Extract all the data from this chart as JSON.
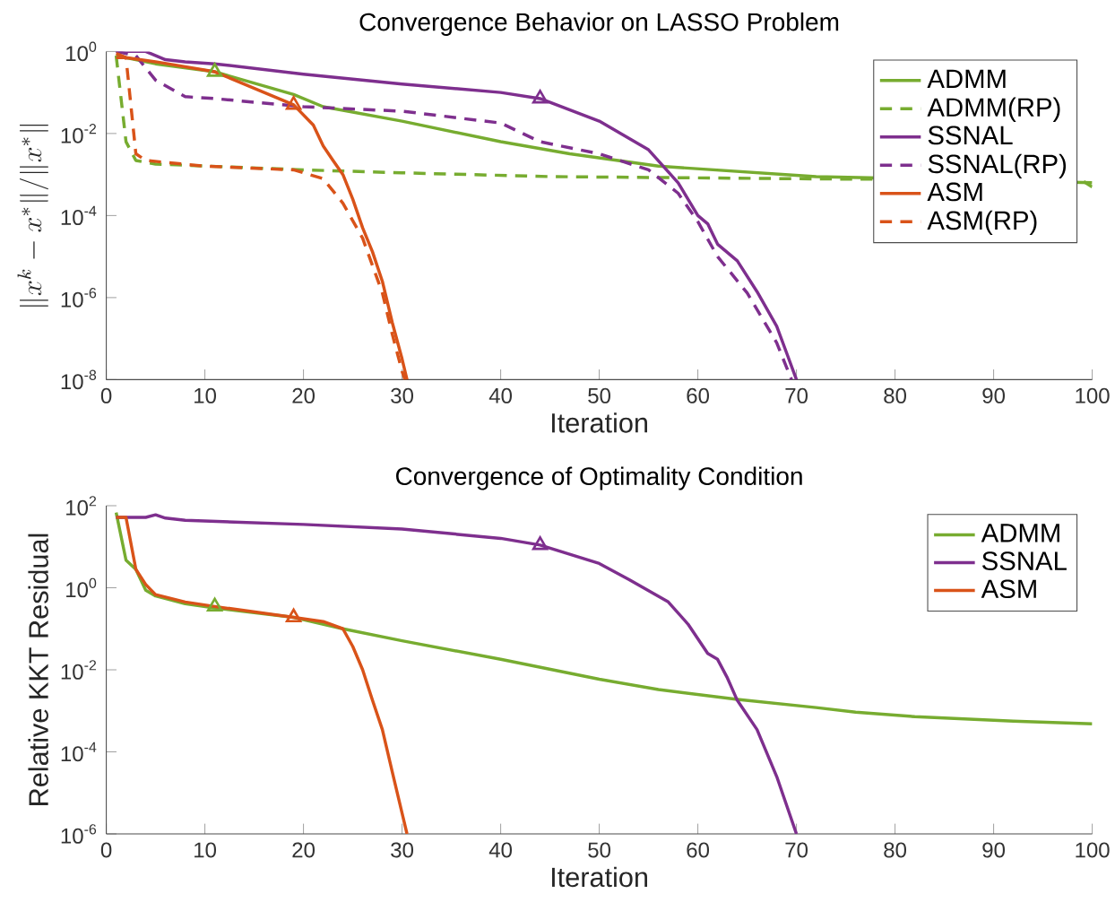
{
  "chart_data": [
    {
      "type": "line",
      "title": "Convergence Behavior on LASSO Problem",
      "xlabel": "Iteration",
      "ylabel": "\\|x^k-x^*\\|/\\|x^*\\|",
      "log": true,
      "legend": "top right",
      "xlim": [
        0,
        100
      ],
      "xticks": [
        0,
        10,
        20,
        30,
        40,
        50,
        60,
        70,
        80,
        90,
        100
      ],
      "ylim": [
        1e-08,
        1
      ],
      "yticks": [
        {
          "value": 1e-08,
          "label": "10$^{-8}$"
        },
        {
          "value": 1e-06,
          "label": "10$^{-6}$"
        },
        {
          "value": 0.0001,
          "label": "10$^{-4}$"
        },
        {
          "value": 0.01,
          "label": "10$^{-2}$"
        },
        {
          "value": 1,
          "label": "10$^{0}$"
        }
      ],
      "series": [
        {
          "name": "ADMM",
          "color": "#77ac30",
          "line_style": "solid",
          "x": [
            1,
            5,
            11,
            19,
            22,
            30,
            40,
            47,
            56,
            72,
            90,
            100
          ],
          "values": [
            0.79,
            0.5,
            0.32,
            0.089,
            0.045,
            0.02,
            0.0063,
            0.0032,
            0.0016,
            0.00089,
            null,
            0.00063
          ]
        },
        {
          "name": "ADMM(RP)",
          "color": "#77ac30",
          "line_style": "dashed",
          "x": [
            1,
            2,
            3,
            5,
            20,
            30,
            45,
            70,
            99,
            100
          ],
          "values": [
            0.79,
            0.0063,
            0.0022,
            0.0018,
            0.0013,
            0.0011,
            0.00089,
            0.00079,
            0.00071,
            0.0005
          ]
        },
        {
          "name": "SSNAL",
          "color": "#7e2f8e",
          "line_style": "solid",
          "x": [
            1,
            4,
            6,
            8,
            11,
            20,
            30,
            40,
            44,
            50,
            55,
            58,
            60,
            61,
            62,
            64,
            66,
            68,
            69,
            70
          ],
          "values": [
            1,
            1,
            0.63,
            0.56,
            0.5,
            0.28,
            0.16,
            0.1,
            0.071,
            0.02,
            0.004,
            0.00063,
            0.0001,
            6.3e-05,
            2e-05,
            7.9e-06,
            1.4e-06,
            2e-07,
            4.5e-08,
            1e-08
          ]
        },
        {
          "name": "SSNAL(RP)",
          "color": "#7e2f8e",
          "line_style": "dashed",
          "x": [
            1,
            3,
            5,
            8,
            11,
            20,
            30,
            40,
            44,
            50,
            55,
            58,
            60,
            62,
            65,
            68,
            69.5
          ],
          "values": [
            1,
            0.79,
            0.2,
            0.079,
            0.071,
            0.045,
            0.035,
            0.018,
            0.0063,
            0.0032,
            0.0013,
            0.00035,
            7.1e-05,
            1e-05,
            1.3e-06,
            7.9e-08,
            1e-08
          ]
        },
        {
          "name": "ASM",
          "color": "#d95319",
          "line_style": "solid",
          "x": [
            1,
            2,
            5,
            11,
            19,
            21,
            22,
            23,
            24,
            25,
            26,
            27,
            28,
            29,
            30,
            30.5
          ],
          "values": [
            0.89,
            0.71,
            0.56,
            0.32,
            0.05,
            0.016,
            0.005,
            0.0022,
            0.001,
            0.00025,
            5e-05,
            1.3e-05,
            2.5e-06,
            2.5e-07,
            3.2e-08,
            1e-08
          ]
        },
        {
          "name": "ASM(RP)",
          "color": "#d95319",
          "line_style": "dashed",
          "x": [
            1,
            2,
            3,
            4,
            10,
            19,
            22,
            24,
            26,
            28,
            29,
            30,
            30.3
          ],
          "values": [
            0.71,
            0.71,
            0.0032,
            0.0022,
            0.0016,
            0.0013,
            0.00079,
            0.0002,
            2.8e-05,
            1.3e-06,
            1.3e-07,
            1.6e-08,
            1e-08
          ]
        },
        {
          "type": "scatter",
          "marker": "triangle",
          "color": "#77ac30",
          "x": [
            11
          ],
          "values": [
            0.32
          ]
        },
        {
          "type": "scatter",
          "marker": "triangle",
          "color": "#d95319",
          "x": [
            19
          ],
          "values": [
            0.05
          ]
        },
        {
          "type": "scatter",
          "marker": "triangle",
          "color": "#7e2f8e",
          "x": [
            44
          ],
          "values": [
            0.071
          ]
        }
      ]
    },
    {
      "type": "line",
      "title": "Convergence of Optimality Condition",
      "xlabel": "Iteration",
      "ylabel": "Relative KKT Residual",
      "log": true,
      "legend": "top right",
      "xlim": [
        0,
        100
      ],
      "xticks": [
        0,
        10,
        20,
        30,
        40,
        50,
        60,
        70,
        80,
        90,
        100
      ],
      "ylim": [
        1e-06,
        100
      ],
      "yticks": [
        {
          "value": 1e-06,
          "label": "10$^{-6}$"
        },
        {
          "value": 0.0001,
          "label": "10$^{-4}$"
        },
        {
          "value": 0.01,
          "label": "10$^{-2}$"
        },
        {
          "value": 1,
          "label": "10$^{0}$"
        },
        {
          "value": 100,
          "label": "10$^{2}$"
        }
      ],
      "series": [
        {
          "name": "ADMM",
          "color": "#77ac30",
          "line_style": "solid",
          "x": [
            1,
            2,
            3,
            4,
            5,
            8,
            11,
            19,
            24,
            30,
            40,
            50,
            56,
            64,
            72,
            76,
            82,
            92,
            100
          ],
          "values": [
            68,
            4.7,
            2.8,
            0.87,
            0.63,
            0.41,
            0.32,
            0.19,
            0.1,
            0.051,
            0.018,
            0.0059,
            0.0033,
            0.0019,
            0.0012,
            0.00093,
            0.00072,
            0.00056,
            0.00048
          ]
        },
        {
          "name": "SSNAL",
          "color": "#7e2f8e",
          "line_style": "solid",
          "x": [
            1,
            4,
            5,
            6,
            8,
            20,
            30,
            40,
            44,
            50,
            53,
            57,
            59,
            61,
            62,
            63,
            64,
            66,
            68,
            70
          ],
          "values": [
            52,
            52,
            60,
            50,
            44,
            35,
            27,
            16,
            11,
            3.9,
            1.6,
            0.45,
            0.13,
            0.025,
            0.018,
            0.0063,
            0.0018,
            0.00035,
            2.5e-05,
            1e-06
          ]
        },
        {
          "name": "ASM",
          "color": "#d95319",
          "line_style": "solid",
          "x": [
            1,
            2,
            3,
            4,
            5,
            8,
            11,
            19,
            22,
            24,
            25,
            26,
            27,
            28,
            29,
            30,
            30.5
          ],
          "values": [
            52,
            52,
            2.8,
            1.2,
            0.68,
            0.45,
            0.35,
            0.19,
            0.15,
            0.1,
            0.037,
            0.01,
            0.0018,
            0.00035,
            3.3e-05,
            3.2e-06,
            1e-06
          ]
        },
        {
          "type": "scatter",
          "marker": "triangle",
          "color": "#77ac30",
          "x": [
            11
          ],
          "values": [
            0.35
          ]
        },
        {
          "type": "scatter",
          "marker": "triangle",
          "color": "#d95319",
          "x": [
            19
          ],
          "values": [
            0.19
          ]
        },
        {
          "type": "scatter",
          "marker": "triangle",
          "color": "#7e2f8e",
          "x": [
            44
          ],
          "values": [
            11
          ]
        }
      ]
    }
  ]
}
